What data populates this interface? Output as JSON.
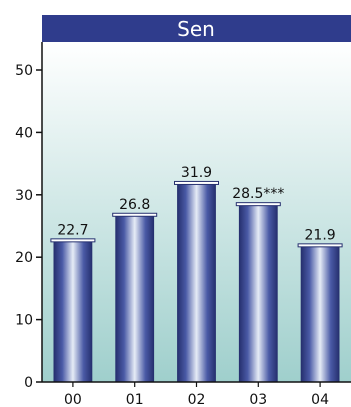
{
  "chart_data": {
    "type": "bar",
    "title": "Sen",
    "categories": [
      "00",
      "01",
      "02",
      "03",
      "04"
    ],
    "values": [
      22.7,
      26.8,
      31.9,
      28.5,
      21.9
    ],
    "value_labels": [
      "22.7",
      "26.8",
      "31.9",
      "28.5***",
      "21.9"
    ],
    "xlabel": "",
    "ylabel": "",
    "ylim": [
      0,
      50
    ],
    "yticks": [
      "0",
      "10",
      "20",
      "30",
      "40",
      "50"
    ],
    "grid": false,
    "legend": "none"
  },
  "colors": {
    "title_bar": "#2f3c8c",
    "title_text": "#ffffff",
    "bg_top": "#ffffff",
    "bg_bottom": "#9fcfcc",
    "bar_dark": "#26306f",
    "bar_mid": "#4a5aa6",
    "bar_light": "#e6ecf6",
    "axis": "#111111"
  }
}
